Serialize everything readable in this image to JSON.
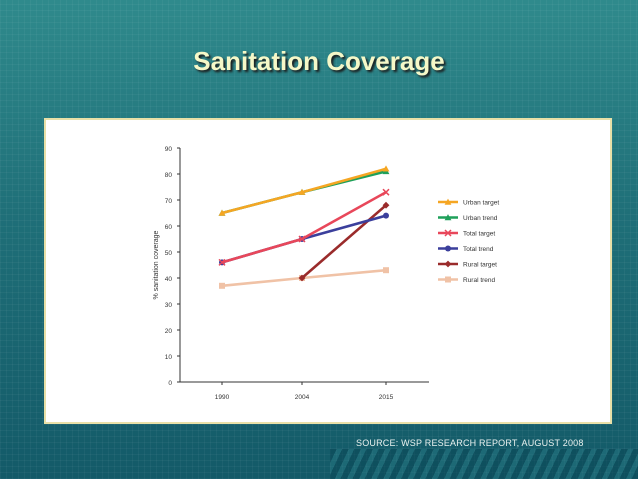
{
  "slide": {
    "title": "Sanitation Coverage",
    "source": "SOURCE: WSP RESEARCH REPORT, AUGUST 2008"
  },
  "chart_data": {
    "type": "line",
    "title": "",
    "xlabel": "",
    "ylabel": "% sanitation coverage",
    "x": [
      "1990",
      "2004",
      "2015"
    ],
    "ylim": [
      0,
      90
    ],
    "yticks": [
      0,
      10,
      20,
      30,
      40,
      50,
      60,
      70,
      80,
      90
    ],
    "grid": false,
    "legend": "right",
    "series": [
      {
        "name": "Urban target",
        "color": "#f5a623",
        "marker": "triangle",
        "values": [
          65,
          73,
          82
        ]
      },
      {
        "name": "Urban trend",
        "color": "#1fa05a",
        "marker": "triangle",
        "values": [
          65,
          73,
          81
        ]
      },
      {
        "name": "Total target",
        "color": "#e8475a",
        "marker": "x",
        "values": [
          46,
          55,
          73
        ]
      },
      {
        "name": "Total trend",
        "color": "#3b3f9c",
        "marker": "circle",
        "values": [
          46,
          55,
          64
        ]
      },
      {
        "name": "Rural target",
        "color": "#9a2b2b",
        "marker": "diamond",
        "values": [
          null,
          40,
          68
        ]
      },
      {
        "name": "Rural trend",
        "color": "#f0c2a6",
        "marker": "square",
        "values": [
          37,
          40,
          43
        ]
      }
    ]
  }
}
